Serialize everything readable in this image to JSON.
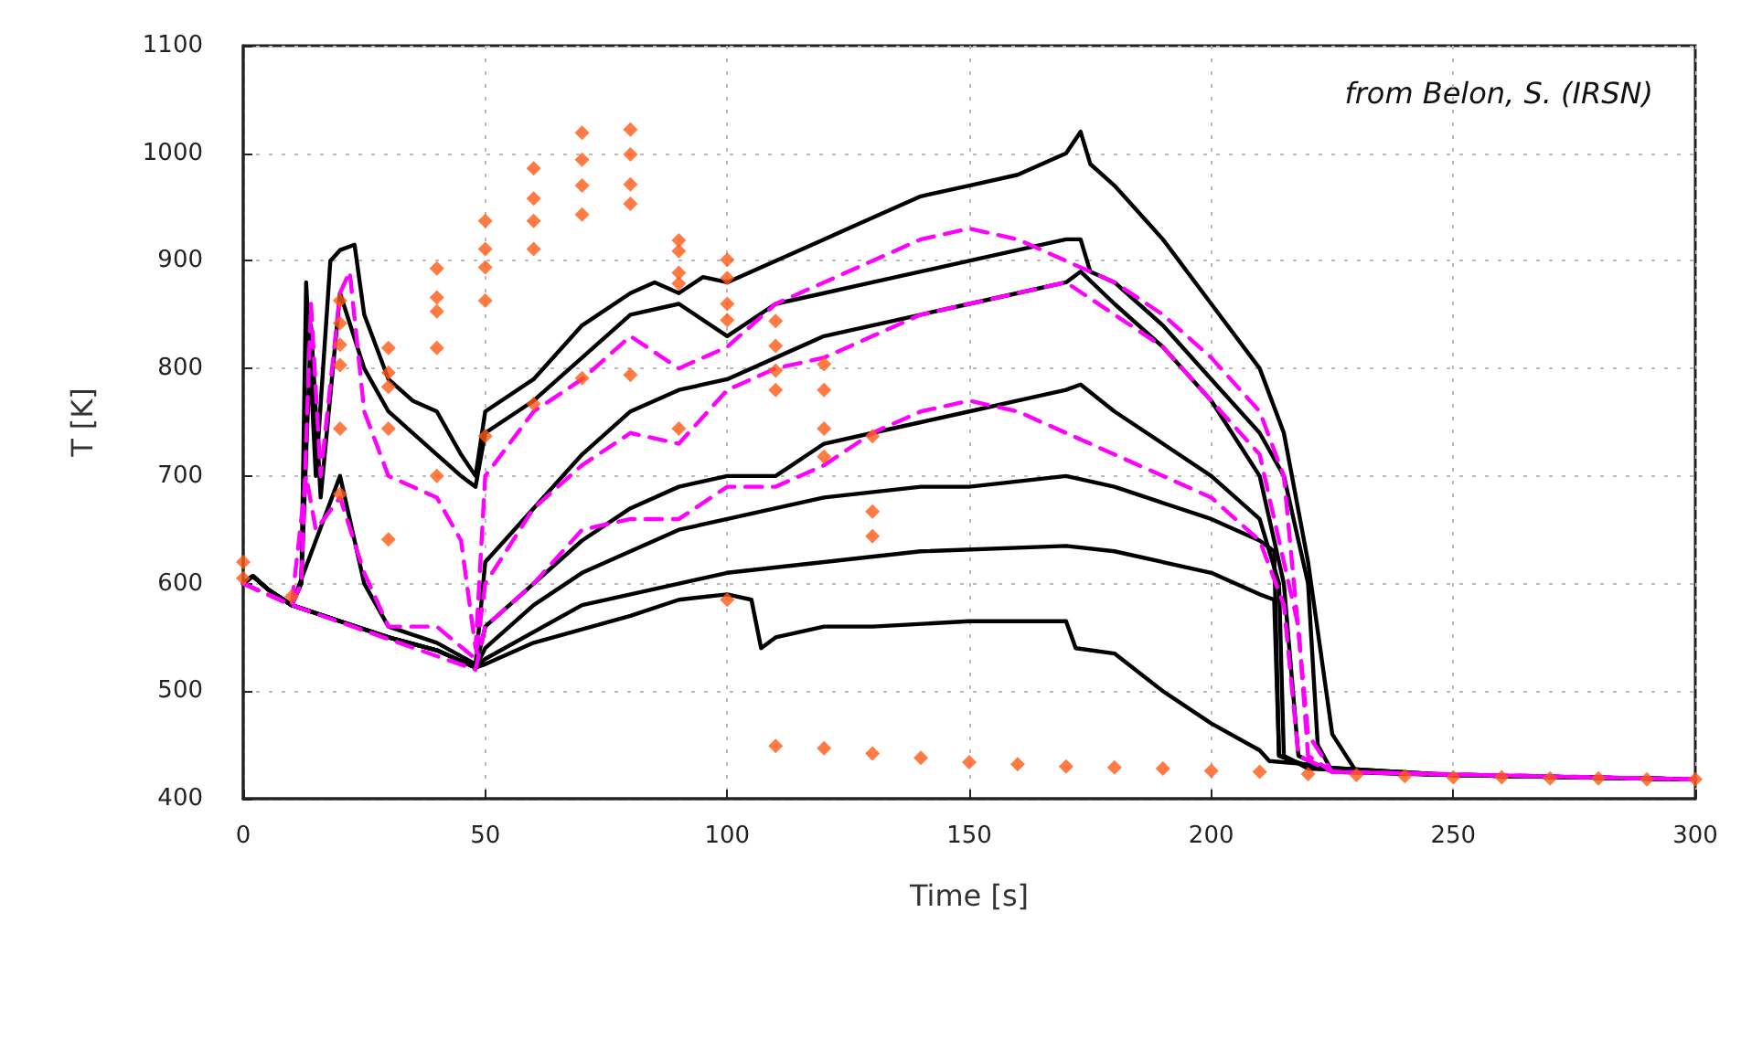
{
  "chart_data": {
    "type": "line",
    "xlabel": "Time [s]",
    "ylabel": "T [K]",
    "annotations": [
      "from Belon, S. (IRSN)"
    ],
    "xlim": [
      0,
      300
    ],
    "xticks": [
      0,
      50,
      100,
      150,
      200,
      250,
      300
    ],
    "ylim": [
      400,
      1100
    ],
    "yticks": [
      400,
      500,
      600,
      700,
      800,
      900,
      1000,
      1100
    ],
    "grid": true,
    "series": [
      {
        "color": "#000000",
        "line_style": "solid",
        "x": [
          0,
          2,
          5,
          10,
          12,
          13,
          15,
          18,
          20,
          23,
          25,
          30,
          35,
          40,
          45,
          48,
          50,
          60,
          70,
          80,
          85,
          90,
          95,
          100,
          110,
          120,
          130,
          140,
          150,
          160,
          170,
          173,
          175,
          180,
          190,
          200,
          210,
          215,
          220,
          225,
          230,
          250,
          300
        ],
        "values": [
          600,
          607,
          595,
          580,
          600,
          880,
          700,
          900,
          910,
          915,
          850,
          790,
          770,
          760,
          720,
          700,
          760,
          790,
          840,
          870,
          880,
          870,
          885,
          880,
          900,
          920,
          940,
          960,
          970,
          980,
          1000,
          1020,
          990,
          970,
          920,
          860,
          800,
          740,
          620,
          460,
          425,
          422,
          418
        ]
      },
      {
        "color": "#000000",
        "line_style": "solid",
        "x": [
          0,
          2,
          5,
          10,
          12,
          14,
          16,
          20,
          25,
          30,
          40,
          45,
          48,
          50,
          60,
          70,
          80,
          90,
          100,
          110,
          120,
          130,
          140,
          150,
          160,
          170,
          173,
          175,
          180,
          190,
          200,
          210,
          215,
          220,
          222,
          225,
          250,
          300
        ],
        "values": [
          600,
          607,
          595,
          580,
          600,
          840,
          680,
          870,
          800,
          760,
          720,
          700,
          690,
          740,
          770,
          810,
          850,
          860,
          830,
          860,
          870,
          880,
          890,
          900,
          910,
          920,
          920,
          890,
          880,
          840,
          790,
          740,
          700,
          600,
          450,
          425,
          422,
          418
        ]
      },
      {
        "color": "#000000",
        "line_style": "solid",
        "x": [
          0,
          2,
          5,
          10,
          15,
          20,
          25,
          30,
          40,
          48,
          50,
          60,
          70,
          80,
          90,
          100,
          110,
          120,
          130,
          140,
          150,
          160,
          170,
          173,
          180,
          190,
          200,
          210,
          215,
          218,
          225,
          250,
          300
        ],
        "values": [
          600,
          607,
          595,
          580,
          640,
          700,
          600,
          560,
          545,
          525,
          620,
          670,
          720,
          760,
          780,
          790,
          810,
          830,
          840,
          850,
          860,
          870,
          880,
          890,
          860,
          820,
          770,
          700,
          600,
          440,
          425,
          422,
          418
        ]
      },
      {
        "color": "#000000",
        "line_style": "solid",
        "x": [
          0,
          2,
          5,
          10,
          20,
          30,
          40,
          48,
          50,
          60,
          70,
          80,
          90,
          100,
          110,
          120,
          130,
          140,
          150,
          160,
          170,
          173,
          180,
          190,
          200,
          210,
          214,
          215,
          220,
          250,
          300
        ],
        "values": [
          600,
          607,
          595,
          580,
          565,
          550,
          538,
          522,
          560,
          600,
          640,
          670,
          690,
          700,
          700,
          730,
          740,
          750,
          760,
          770,
          780,
          785,
          760,
          730,
          700,
          660,
          600,
          440,
          428,
          422,
          418
        ]
      },
      {
        "color": "#000000",
        "line_style": "solid",
        "x": [
          0,
          2,
          5,
          10,
          20,
          30,
          40,
          48,
          50,
          60,
          70,
          80,
          90,
          100,
          110,
          120,
          140,
          150,
          170,
          180,
          200,
          210,
          213,
          214,
          220,
          250,
          300
        ],
        "values": [
          600,
          607,
          595,
          580,
          565,
          550,
          538,
          522,
          540,
          580,
          610,
          630,
          650,
          660,
          670,
          680,
          690,
          690,
          700,
          690,
          660,
          640,
          630,
          440,
          430,
          422,
          418
        ]
      },
      {
        "color": "#000000",
        "line_style": "solid",
        "x": [
          0,
          2,
          5,
          10,
          20,
          30,
          40,
          48,
          50,
          70,
          90,
          100,
          120,
          140,
          170,
          180,
          200,
          210,
          213,
          214,
          220,
          250,
          300
        ],
        "values": [
          600,
          607,
          595,
          580,
          565,
          550,
          538,
          522,
          530,
          580,
          600,
          610,
          620,
          630,
          635,
          630,
          610,
          590,
          585,
          440,
          430,
          422,
          418
        ]
      },
      {
        "color": "#000000",
        "line_style": "solid",
        "x": [
          0,
          2,
          5,
          10,
          20,
          30,
          40,
          48,
          50,
          60,
          80,
          90,
          100,
          105,
          107,
          110,
          120,
          130,
          150,
          170,
          172,
          180,
          190,
          200,
          210,
          212,
          220,
          230,
          250,
          300
        ],
        "values": [
          600,
          607,
          595,
          580,
          565,
          550,
          538,
          522,
          525,
          545,
          570,
          585,
          590,
          585,
          540,
          550,
          560,
          560,
          565,
          565,
          540,
          535,
          500,
          470,
          445,
          435,
          432,
          425,
          422,
          418
        ]
      },
      {
        "color": "#ff00ff",
        "line_style": "dashed",
        "x": [
          0,
          10,
          12,
          14,
          16,
          20,
          22,
          25,
          30,
          40,
          45,
          48,
          50,
          60,
          70,
          80,
          90,
          100,
          110,
          120,
          130,
          140,
          150,
          160,
          170,
          180,
          190,
          200,
          210,
          215,
          220,
          225,
          300
        ],
        "values": [
          600,
          580,
          600,
          860,
          700,
          870,
          890,
          760,
          700,
          680,
          640,
          540,
          700,
          760,
          790,
          830,
          800,
          820,
          860,
          880,
          900,
          920,
          930,
          920,
          900,
          880,
          850,
          810,
          760,
          700,
          460,
          425,
          418
        ]
      },
      {
        "color": "#ff00ff",
        "line_style": "dashed",
        "x": [
          0,
          10,
          13,
          15,
          20,
          25,
          30,
          40,
          48,
          50,
          60,
          70,
          80,
          90,
          100,
          110,
          120,
          130,
          140,
          150,
          170,
          180,
          190,
          200,
          210,
          218,
          220,
          225,
          300
        ],
        "values": [
          600,
          580,
          700,
          650,
          680,
          610,
          560,
          560,
          530,
          600,
          670,
          710,
          740,
          730,
          780,
          800,
          810,
          830,
          850,
          860,
          880,
          850,
          820,
          770,
          720,
          560,
          440,
          425,
          418
        ]
      },
      {
        "color": "#ff00ff",
        "line_style": "dashed",
        "x": [
          0,
          10,
          48,
          50,
          60,
          70,
          80,
          90,
          100,
          110,
          120,
          130,
          140,
          150,
          160,
          170,
          180,
          190,
          200,
          210,
          215,
          218,
          225,
          300
        ],
        "values": [
          600,
          580,
          520,
          560,
          600,
          650,
          660,
          660,
          690,
          690,
          710,
          740,
          760,
          770,
          760,
          740,
          720,
          700,
          680,
          640,
          580,
          440,
          425,
          418
        ]
      },
      {
        "type": "scatter",
        "marker": "diamond",
        "color": "#ff5a14",
        "x": [
          0,
          0,
          10,
          20,
          20,
          20,
          20,
          20,
          20,
          30,
          30,
          30,
          30,
          30,
          40,
          40,
          40,
          40,
          40,
          50,
          50,
          50,
          50,
          50,
          60,
          60,
          60,
          60,
          60,
          70,
          70,
          70,
          70,
          70,
          80,
          80,
          80,
          80,
          80,
          90,
          90,
          90,
          90,
          90,
          100,
          100,
          100,
          100,
          100,
          110,
          110,
          110,
          110,
          110,
          120,
          120,
          120,
          120,
          120,
          130,
          130,
          130,
          130,
          140,
          150,
          160,
          170,
          180,
          190,
          200,
          210,
          220,
          230,
          240,
          250,
          260,
          270,
          280,
          290,
          300
        ],
        "values": [
          620,
          605,
          588,
          863,
          842,
          822,
          803,
          744,
          683,
          819,
          796,
          783,
          744,
          641,
          893,
          866,
          853,
          819,
          700,
          937,
          911,
          894,
          863,
          737,
          986,
          958,
          937,
          911,
          767,
          1019,
          994,
          970,
          943,
          791,
          1022,
          999,
          971,
          953,
          794,
          919,
          909,
          889,
          879,
          744,
          901,
          884,
          860,
          845,
          585,
          844,
          821,
          798,
          780,
          449,
          804,
          780,
          744,
          718,
          447,
          737,
          667,
          644,
          442,
          438,
          434,
          432,
          430,
          429,
          428,
          426,
          425,
          423,
          422,
          421,
          420,
          420,
          419,
          419,
          418,
          418
        ]
      }
    ]
  }
}
